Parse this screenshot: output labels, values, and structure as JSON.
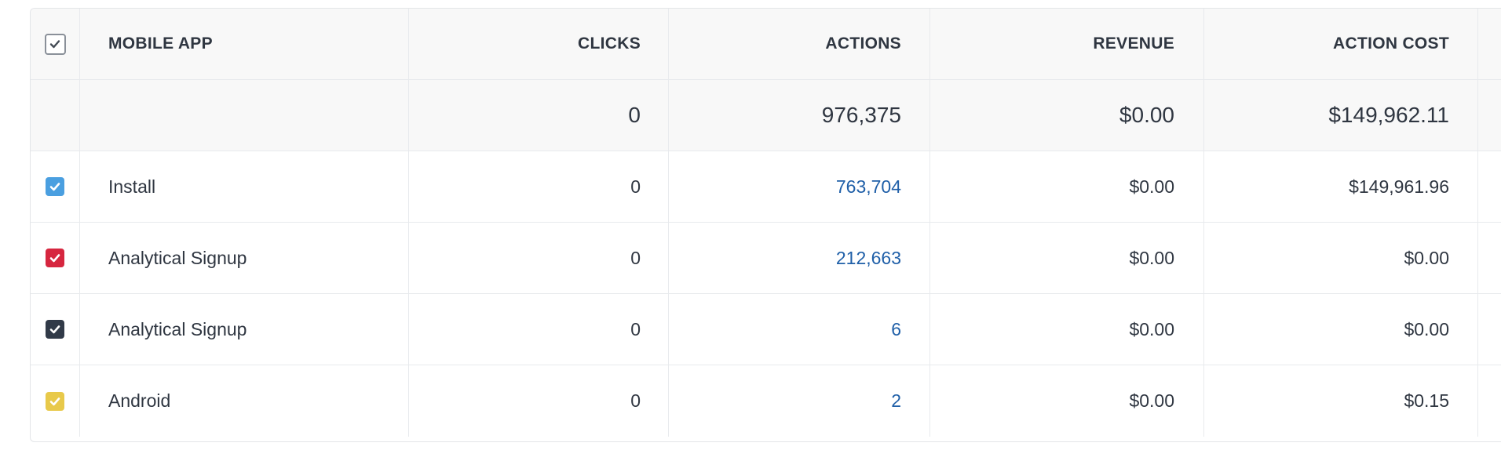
{
  "table": {
    "headers": {
      "name": "MOBILE APP",
      "clicks": "CLICKS",
      "actions": "ACTIONS",
      "revenue": "REVENUE",
      "action_cost": "ACTION COST"
    },
    "totals": {
      "clicks": "0",
      "actions": "976,375",
      "revenue": "$0.00",
      "action_cost": "$149,962.11"
    },
    "rows": [
      {
        "name": "Install",
        "clicks": "0",
        "actions": "763,704",
        "revenue": "$0.00",
        "action_cost": "$149,961.96",
        "color": "#4a9fe0"
      },
      {
        "name": "Analytical Signup",
        "clicks": "0",
        "actions": "212,663",
        "revenue": "$0.00",
        "action_cost": "$0.00",
        "color": "#d6263f"
      },
      {
        "name": "Analytical Signup",
        "clicks": "0",
        "actions": "6",
        "revenue": "$0.00",
        "action_cost": "$0.00",
        "color": "#313a48"
      },
      {
        "name": "Android",
        "clicks": "0",
        "actions": "2",
        "revenue": "$0.00",
        "action_cost": "$0.15",
        "color": "#e8c94a"
      }
    ]
  },
  "colors": {
    "link": "#1f5fa8",
    "header_bg": "#f8f8f8",
    "text": "#2f3641"
  },
  "icons": {
    "select_all": "checkmark-icon",
    "row_check": "checkmark-icon"
  }
}
